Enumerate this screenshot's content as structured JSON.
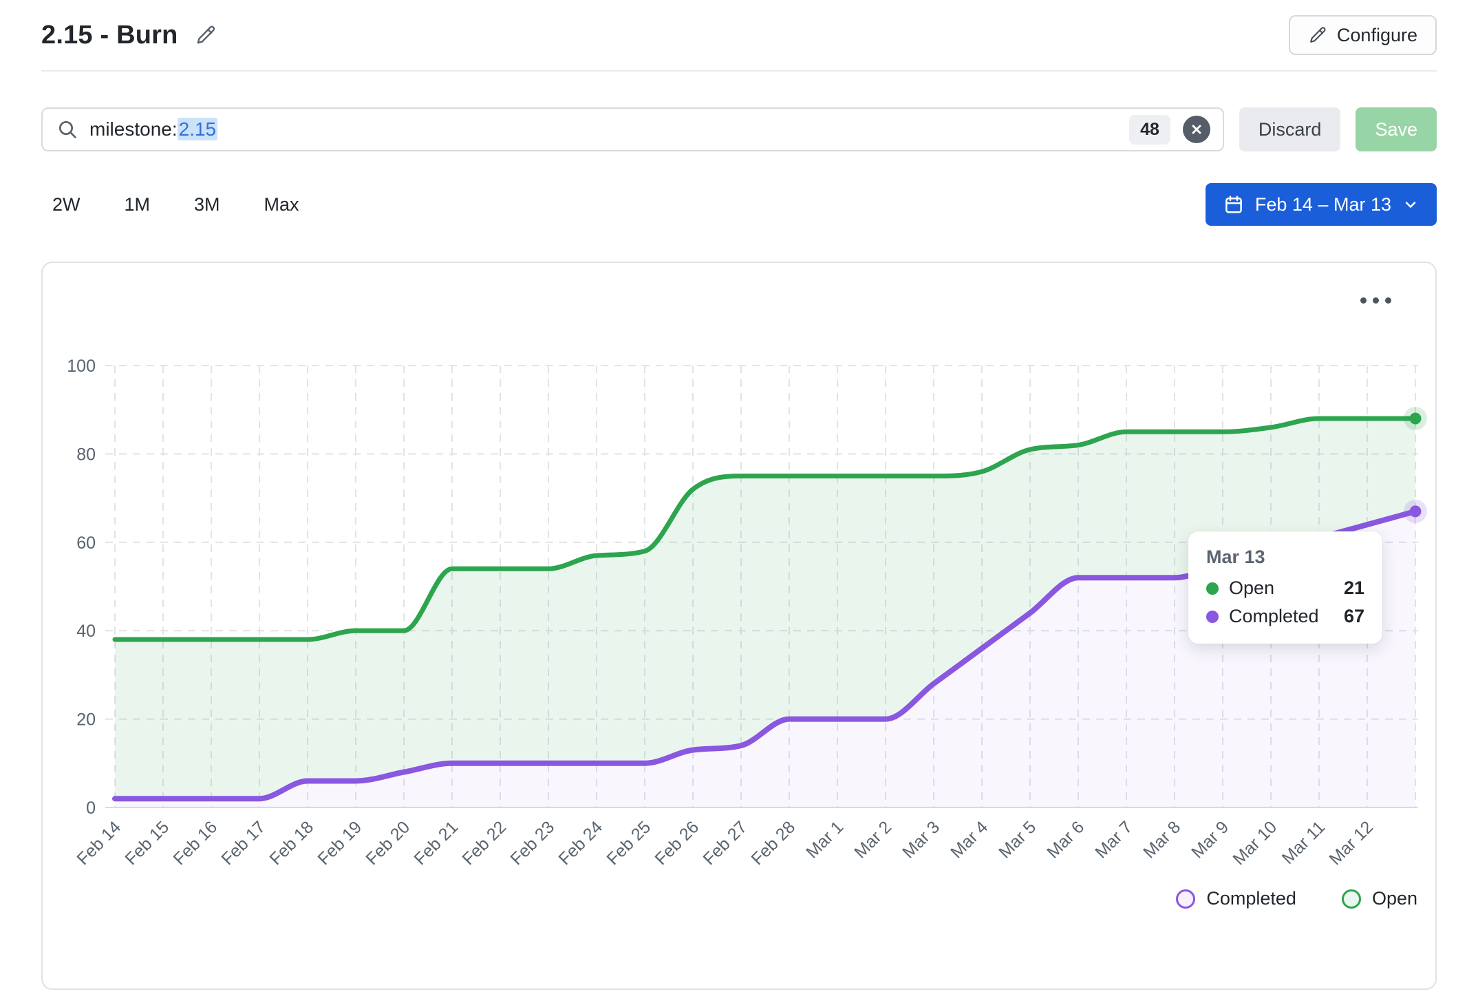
{
  "header": {
    "title": "2.15 - Burn",
    "configure_label": "Configure"
  },
  "filter_bar": {
    "query_prefix": "milestone:",
    "query_value": "2.15",
    "count_badge": "48",
    "discard_label": "Discard",
    "save_label": "Save"
  },
  "range_controls": {
    "options": [
      "2W",
      "1M",
      "3M",
      "Max"
    ],
    "date_range_label": "Feb 14 – Mar 13"
  },
  "tooltip": {
    "title": "Mar 13",
    "rows": [
      {
        "label": "Open",
        "value": "21",
        "color": "#2da44e"
      },
      {
        "label": "Completed",
        "value": "67",
        "color": "#8957e0"
      }
    ]
  },
  "legend": [
    {
      "label": "Completed",
      "color": "#8957e0",
      "fill": "#f9f1fd"
    },
    {
      "label": "Open",
      "color": "#2da44e",
      "fill": "#e9f7ee"
    }
  ],
  "chart_data": {
    "type": "area",
    "stacked": true,
    "title": "",
    "xlabel": "",
    "ylabel": "",
    "ylim": [
      0,
      100
    ],
    "yticks": [
      0,
      20,
      40,
      60,
      80,
      100
    ],
    "grid": "dashed",
    "legend_position": "bottom-right",
    "categories": [
      "Feb 14",
      "Feb 15",
      "Feb 16",
      "Feb 17",
      "Feb 18",
      "Feb 19",
      "Feb 20",
      "Feb 21",
      "Feb 22",
      "Feb 23",
      "Feb 24",
      "Feb 25",
      "Feb 26",
      "Feb 27",
      "Feb 28",
      "Mar 1",
      "Mar 2",
      "Mar 3",
      "Mar 4",
      "Mar 5",
      "Mar 6",
      "Mar 7",
      "Mar 8",
      "Mar 9",
      "Mar 10",
      "Mar 11",
      "Mar 12",
      "Mar 13"
    ],
    "x_axis_labels_shown": [
      "Feb 14",
      "Feb 15",
      "Feb 16",
      "Feb 17",
      "Feb 18",
      "Feb 19",
      "Feb 20",
      "Feb 21",
      "Feb 22",
      "Feb 23",
      "Feb 24",
      "Feb 25",
      "Feb 26",
      "Feb 27",
      "Feb 28",
      "Mar 1",
      "Mar 2",
      "Mar 3",
      "Mar 4",
      "Mar 5",
      "Mar 6",
      "Mar 7",
      "Mar 8",
      "Mar 9",
      "Mar 10",
      "Mar 11",
      "Mar 12"
    ],
    "series": [
      {
        "name": "Open",
        "color": "#2da44e",
        "area_fill": "rgba(45,164,78,0.10)",
        "note": "top line = Completed + Open stacked total",
        "values": [
          38,
          38,
          38,
          38,
          38,
          40,
          40,
          54,
          54,
          54,
          57,
          58,
          72,
          75,
          75,
          75,
          75,
          75,
          76,
          81,
          82,
          85,
          85,
          85,
          86,
          88,
          88,
          88
        ]
      },
      {
        "name": "Completed",
        "color": "#8957e0",
        "area_fill": "rgba(137,87,229,0.055)",
        "values": [
          2,
          2,
          2,
          2,
          6,
          6,
          8,
          10,
          10,
          10,
          10,
          10,
          13,
          14,
          20,
          20,
          20,
          28,
          36,
          44,
          52,
          52,
          52,
          55,
          58,
          61,
          64,
          67
        ]
      }
    ],
    "end_point_markers": true,
    "hovered_point": {
      "date": "Mar 13",
      "open": 21,
      "completed": 67
    }
  }
}
